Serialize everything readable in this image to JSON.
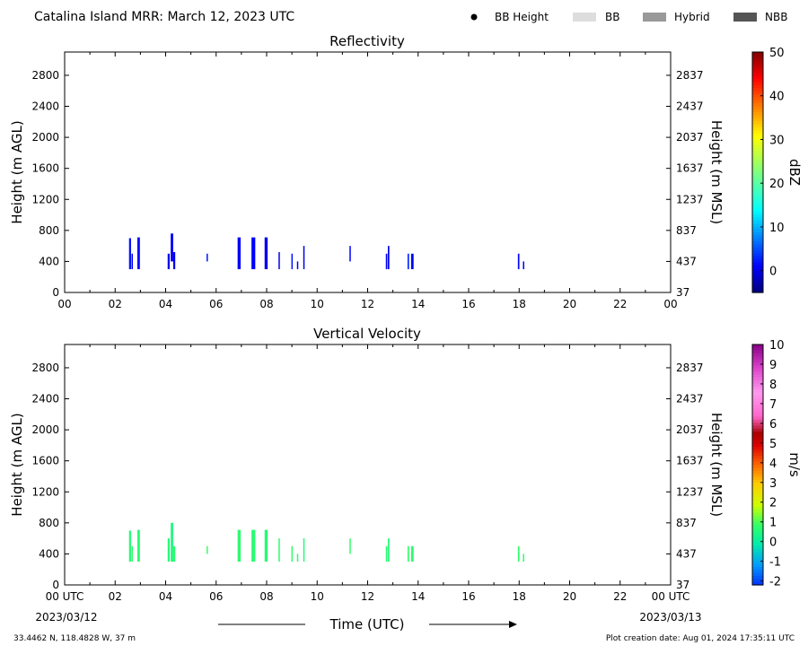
{
  "header": {
    "title": "Catalina Island MRR:  March 12, 2023 UTC",
    "legend": [
      {
        "label": "BB Height",
        "kind": "dot",
        "color": "#000000"
      },
      {
        "label": "BB",
        "kind": "box",
        "color": "#dddddd"
      },
      {
        "label": "Hybrid",
        "kind": "box",
        "color": "#999999"
      },
      {
        "label": "NBB",
        "kind": "box",
        "color": "#555555"
      }
    ]
  },
  "footer": {
    "coords": "33.4462 N, 118.4828 W, 37 m",
    "created": "Plot creation date: Aug 01, 2024 17:35:11 UTC",
    "xlabel": "Time (UTC)",
    "date_start": "2023/03/12",
    "date_end": "2023/03/13"
  },
  "chart_data": [
    {
      "type": "heatmap",
      "title": "Reflectivity",
      "ylabel": "Height (m AGL)",
      "ylabel_right": "Height (m MSL)",
      "xlim": [
        0,
        24
      ],
      "ylim": [
        0,
        3100
      ],
      "x_ticks": [
        "00",
        "02",
        "04",
        "06",
        "08",
        "10",
        "12",
        "14",
        "16",
        "18",
        "20",
        "22",
        "00"
      ],
      "y_ticks": [
        0,
        400,
        800,
        1200,
        1600,
        2000,
        2400,
        2800
      ],
      "y_ticks_right": [
        "37",
        "437",
        "837",
        "1237",
        "1637",
        "2037",
        "2437",
        "2837"
      ],
      "colorbar": {
        "label": "dBZ",
        "range": [
          -5,
          50
        ],
        "ticks": [
          "0",
          "10",
          "20",
          "30",
          "40",
          "50"
        ],
        "tick_values": [
          0,
          10,
          20,
          30,
          40,
          50
        ]
      },
      "cells": [
        {
          "t": 2.55,
          "w": 0.08,
          "h0": 300,
          "h1": 700,
          "v": 2
        },
        {
          "t": 2.65,
          "w": 0.05,
          "h0": 300,
          "h1": 500,
          "v": 0
        },
        {
          "t": 2.88,
          "w": 0.1,
          "h0": 300,
          "h1": 710,
          "v": 1
        },
        {
          "t": 4.08,
          "w": 0.08,
          "h0": 300,
          "h1": 500,
          "v": 0
        },
        {
          "t": 4.2,
          "w": 0.1,
          "h0": 400,
          "h1": 760,
          "v": 1
        },
        {
          "t": 4.3,
          "w": 0.08,
          "h0": 300,
          "h1": 520,
          "v": 0
        },
        {
          "t": 5.62,
          "w": 0.05,
          "h0": 400,
          "h1": 500,
          "v": 2
        },
        {
          "t": 6.85,
          "w": 0.12,
          "h0": 300,
          "h1": 710,
          "v": 1
        },
        {
          "t": 7.4,
          "w": 0.15,
          "h0": 300,
          "h1": 710,
          "v": 1
        },
        {
          "t": 7.92,
          "w": 0.12,
          "h0": 300,
          "h1": 710,
          "v": 0
        },
        {
          "t": 8.47,
          "w": 0.05,
          "h0": 300,
          "h1": 520,
          "v": 0
        },
        {
          "t": 8.98,
          "w": 0.04,
          "h0": 300,
          "h1": 500,
          "v": 2
        },
        {
          "t": 9.2,
          "w": 0.04,
          "h0": 300,
          "h1": 400,
          "v": 1
        },
        {
          "t": 9.45,
          "w": 0.05,
          "h0": 300,
          "h1": 600,
          "v": 0
        },
        {
          "t": 11.28,
          "w": 0.04,
          "h0": 400,
          "h1": 600,
          "v": 1
        },
        {
          "t": 12.72,
          "w": 0.06,
          "h0": 300,
          "h1": 500,
          "v": 1
        },
        {
          "t": 12.8,
          "w": 0.06,
          "h0": 300,
          "h1": 600,
          "v": 0
        },
        {
          "t": 13.58,
          "w": 0.06,
          "h0": 300,
          "h1": 500,
          "v": 3
        },
        {
          "t": 13.72,
          "w": 0.1,
          "h0": 300,
          "h1": 500,
          "v": 1
        },
        {
          "t": 17.95,
          "w": 0.06,
          "h0": 300,
          "h1": 500,
          "v": 1
        },
        {
          "t": 18.15,
          "w": 0.04,
          "h0": 300,
          "h1": 400,
          "v": 0
        }
      ]
    },
    {
      "type": "heatmap",
      "title": "Vertical Velocity",
      "ylabel": "Height (m AGL)",
      "ylabel_right": "Height (m MSL)",
      "xlim": [
        0,
        24
      ],
      "ylim": [
        0,
        3100
      ],
      "x_ticks": [
        "00 UTC",
        "02",
        "04",
        "06",
        "08",
        "10",
        "12",
        "14",
        "16",
        "18",
        "20",
        "22",
        "00 UTC"
      ],
      "y_ticks": [
        0,
        400,
        800,
        1200,
        1600,
        2000,
        2400,
        2800
      ],
      "y_ticks_right": [
        "37",
        "437",
        "837",
        "1237",
        "1637",
        "2037",
        "2437",
        "2837"
      ],
      "colorbar": {
        "label": "m/s",
        "range": [
          -2.2,
          10
        ],
        "ticks": [
          "-2",
          "-1",
          "0",
          "1",
          "2",
          "3",
          "4",
          "5",
          "6",
          "7",
          "8",
          "9",
          "10"
        ],
        "tick_values": [
          -2,
          -1,
          0,
          1,
          2,
          3,
          4,
          5,
          6,
          7,
          8,
          9,
          10
        ]
      },
      "cells": [
        {
          "t": 2.55,
          "w": 0.08,
          "h0": 300,
          "h1": 700,
          "v": 0.6
        },
        {
          "t": 2.65,
          "w": 0.05,
          "h0": 300,
          "h1": 500,
          "v": 0.8
        },
        {
          "t": 2.88,
          "w": 0.1,
          "h0": 300,
          "h1": 710,
          "v": 0.7
        },
        {
          "t": 4.08,
          "w": 0.08,
          "h0": 300,
          "h1": 600,
          "v": 0.6
        },
        {
          "t": 4.2,
          "w": 0.1,
          "h0": 300,
          "h1": 800,
          "v": 0.5
        },
        {
          "t": 4.3,
          "w": 0.08,
          "h0": 300,
          "h1": 500,
          "v": 0.7
        },
        {
          "t": 5.62,
          "w": 0.05,
          "h0": 400,
          "h1": 500,
          "v": 0.9
        },
        {
          "t": 6.85,
          "w": 0.12,
          "h0": 300,
          "h1": 710,
          "v": 0.7
        },
        {
          "t": 7.4,
          "w": 0.15,
          "h0": 300,
          "h1": 710,
          "v": 0.7
        },
        {
          "t": 7.92,
          "w": 0.12,
          "h0": 300,
          "h1": 710,
          "v": 0.6
        },
        {
          "t": 8.47,
          "w": 0.05,
          "h0": 300,
          "h1": 600,
          "v": 0.7
        },
        {
          "t": 8.98,
          "w": 0.04,
          "h0": 300,
          "h1": 500,
          "v": 0.8
        },
        {
          "t": 9.2,
          "w": 0.04,
          "h0": 300,
          "h1": 400,
          "v": 0.7
        },
        {
          "t": 9.45,
          "w": 0.05,
          "h0": 300,
          "h1": 600,
          "v": 0.6
        },
        {
          "t": 11.28,
          "w": 0.04,
          "h0": 400,
          "h1": 600,
          "v": 0.8
        },
        {
          "t": 12.72,
          "w": 0.06,
          "h0": 300,
          "h1": 500,
          "v": 0.7
        },
        {
          "t": 12.8,
          "w": 0.06,
          "h0": 300,
          "h1": 600,
          "v": 0.6
        },
        {
          "t": 13.58,
          "w": 0.06,
          "h0": 300,
          "h1": 500,
          "v": 0.8
        },
        {
          "t": 13.72,
          "w": 0.1,
          "h0": 300,
          "h1": 500,
          "v": 0.7
        },
        {
          "t": 17.95,
          "w": 0.06,
          "h0": 300,
          "h1": 500,
          "v": 0.8
        },
        {
          "t": 18.15,
          "w": 0.04,
          "h0": 300,
          "h1": 400,
          "v": 0.7
        }
      ]
    }
  ]
}
